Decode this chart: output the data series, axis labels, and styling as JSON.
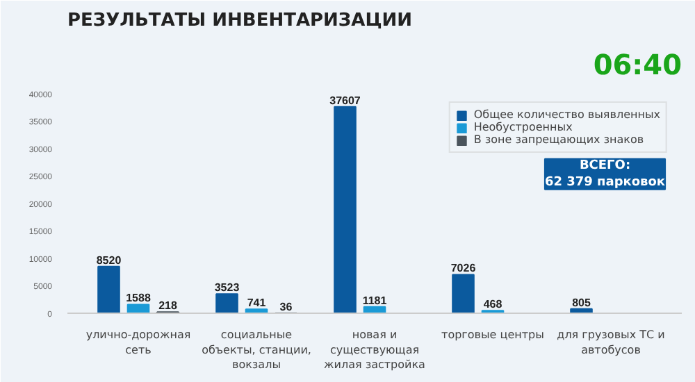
{
  "chart_data": {
    "type": "bar",
    "title": "РЕЗУЛЬТАТЫ ИНВЕНТАРИЗАЦИИ",
    "categories": [
      "улично-дорожная сеть",
      "социальные объекты, станции, вокзалы",
      "новая и существующая жилая застройка",
      "торговые центры",
      "для грузовых ТС и автобусов"
    ],
    "series": [
      {
        "name": "Общее количество выявленных",
        "color": "#0b5a9e",
        "values": [
          8520,
          3523,
          37607,
          7026,
          805
        ]
      },
      {
        "name": "Необустроенных",
        "color": "#1a9ad6",
        "values": [
          1588,
          741,
          1181,
          468,
          null
        ]
      },
      {
        "name": "В зоне запрещающих знаков",
        "color": "#4a545c",
        "values": [
          218,
          36,
          null,
          null,
          null
        ]
      }
    ],
    "ylim": [
      0,
      41000
    ],
    "yticks": [
      0,
      5000,
      10000,
      15000,
      20000,
      25000,
      30000,
      35000,
      40000
    ],
    "data_labels": true,
    "grid": false,
    "legend": "top right",
    "annotations": [
      "ВСЕГО:\n62 379 парковок",
      "06:40"
    ]
  }
}
